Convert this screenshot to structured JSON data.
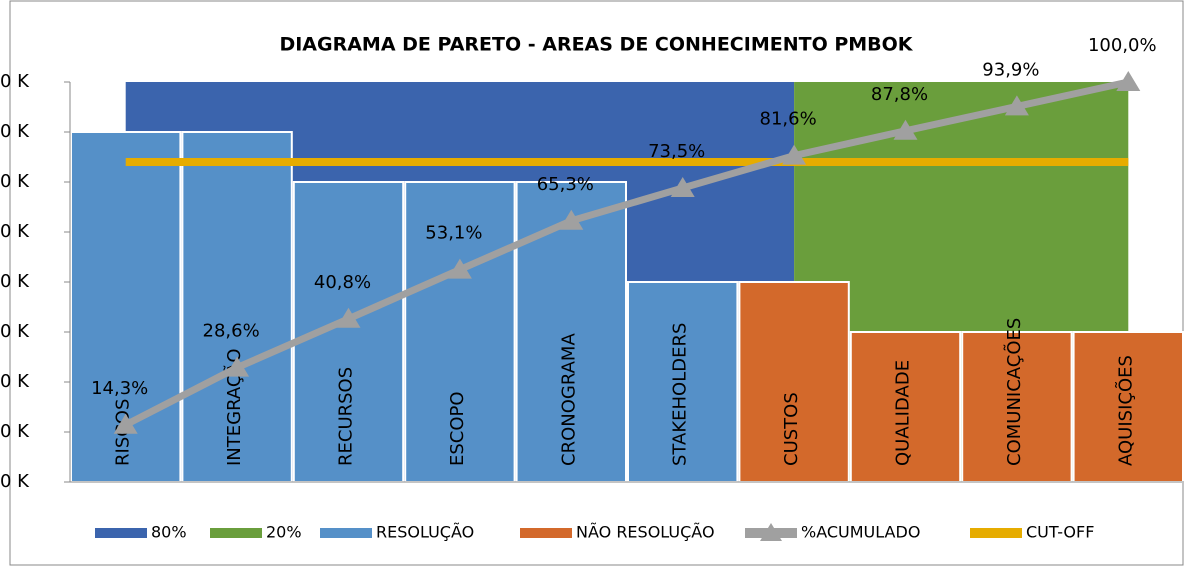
{
  "chart_data": {
    "type": "bar",
    "title": "DIAGRAMA DE PARETO - AREAS DE CONHECIMENTO  PMBOK",
    "categories": [
      "RISCOS",
      "INTEGRAÇÃO",
      "RECURSOS",
      "ESCOPO",
      "CRONOGRAMA",
      "STAKEHOLDERS",
      "CUSTOS",
      "QUALIDADE",
      "COMUNICAÇÕES",
      "AQUISIÇÕES"
    ],
    "series": [
      {
        "name": "80%",
        "type": "area",
        "axis": "y2",
        "color": "#3b64ad",
        "values": [
          100,
          100,
          100,
          100,
          100,
          100,
          100,
          null,
          null,
          null
        ]
      },
      {
        "name": "20%",
        "type": "area",
        "axis": "y2",
        "color": "#6a9e3c",
        "values": [
          null,
          null,
          null,
          null,
          null,
          null,
          100,
          100,
          100,
          100
        ]
      },
      {
        "name": "RESOLUÇÃO",
        "type": "bar",
        "color": "#5590c8",
        "values": [
          7,
          7,
          6,
          6,
          6,
          4,
          null,
          null,
          null,
          null
        ]
      },
      {
        "name": "NÃO RESOLUÇÃO",
        "type": "bar",
        "color": "#d3692b",
        "values": [
          null,
          null,
          null,
          null,
          null,
          null,
          4,
          3,
          3,
          3
        ]
      },
      {
        "name": "%ACUMULADO",
        "type": "line",
        "axis": "y2",
        "color": "#a0a0a0",
        "marker": "triangle",
        "values": [
          14.3,
          28.6,
          40.8,
          53.1,
          65.3,
          73.5,
          81.6,
          87.8,
          93.9,
          100
        ],
        "value_labels": [
          "14,3%",
          "28,6%",
          "40,8%",
          "53,1%",
          "65,3%",
          "73,5%",
          "81,6%",
          "87,8%",
          "93,9%",
          "100,0%"
        ]
      },
      {
        "name": "CUT-OFF",
        "type": "line",
        "axis": "y2",
        "color": "#e6ac00",
        "values": [
          80,
          80,
          80,
          80,
          80,
          80,
          80,
          80,
          80,
          80
        ]
      }
    ],
    "ylim": [
      0,
      8
    ],
    "yticks": [
      {
        "value": 0,
        "label": "0 K"
      },
      {
        "value": 1,
        "label": "0 K"
      },
      {
        "value": 2,
        "label": "0 K"
      },
      {
        "value": 3,
        "label": "0 K"
      },
      {
        "value": 4,
        "label": "0 K"
      },
      {
        "value": 5,
        "label": "0 K"
      },
      {
        "value": 6,
        "label": "0 K"
      },
      {
        "value": 7,
        "label": "0 K"
      },
      {
        "value": 8,
        "label": "0 K"
      }
    ],
    "y2lim": [
      0,
      100
    ],
    "legend": "bottom"
  }
}
